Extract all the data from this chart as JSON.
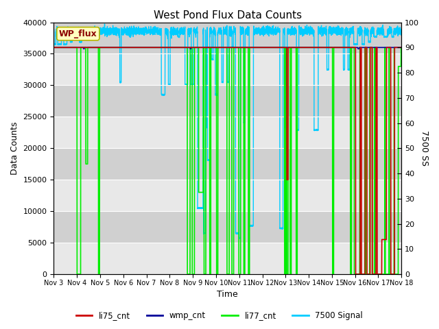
{
  "title": "West Pond Flux Data Counts",
  "xlabel": "Time",
  "ylabel_left": "Data Counts",
  "ylabel_right": "7500 SS",
  "xlim_start": 3,
  "xlim_end": 18,
  "ylim_left": [
    0,
    40000
  ],
  "ylim_right": [
    0,
    100
  ],
  "xtick_labels": [
    "Nov 3",
    "Nov 4",
    "Nov 5",
    "Nov 6",
    "Nov 7",
    "Nov 8",
    "Nov 9",
    "Nov 10",
    "Nov 11",
    "Nov 12",
    "Nov 13",
    "Nov 14",
    "Nov 15",
    "Nov 16",
    "Nov 17",
    "Nov 18"
  ],
  "xtick_positions": [
    3,
    4,
    5,
    6,
    7,
    8,
    9,
    10,
    11,
    12,
    13,
    14,
    15,
    16,
    17,
    18
  ],
  "ytick_left": [
    0,
    5000,
    10000,
    15000,
    20000,
    25000,
    30000,
    35000,
    40000
  ],
  "ytick_right": [
    0,
    10,
    20,
    30,
    40,
    50,
    60,
    70,
    80,
    90,
    100
  ],
  "bg_color_light": "#e8e8e8",
  "bg_color_dark": "#d0d0d0",
  "fig_bg": "#ffffff",
  "legend_label": "WP_flux",
  "colors": {
    "li75_cnt": "#cc0000",
    "wmp_cnt": "#000099",
    "li77_cnt": "#00ee00",
    "signal_7500": "#00ccff"
  },
  "line_widths": {
    "li75_cnt": 1.2,
    "wmp_cnt": 1.2,
    "li77_cnt": 1.2,
    "signal_7500": 1.0
  },
  "base_count": 36000,
  "signal_base_pct": 95.0,
  "signal_noise": 0.8
}
